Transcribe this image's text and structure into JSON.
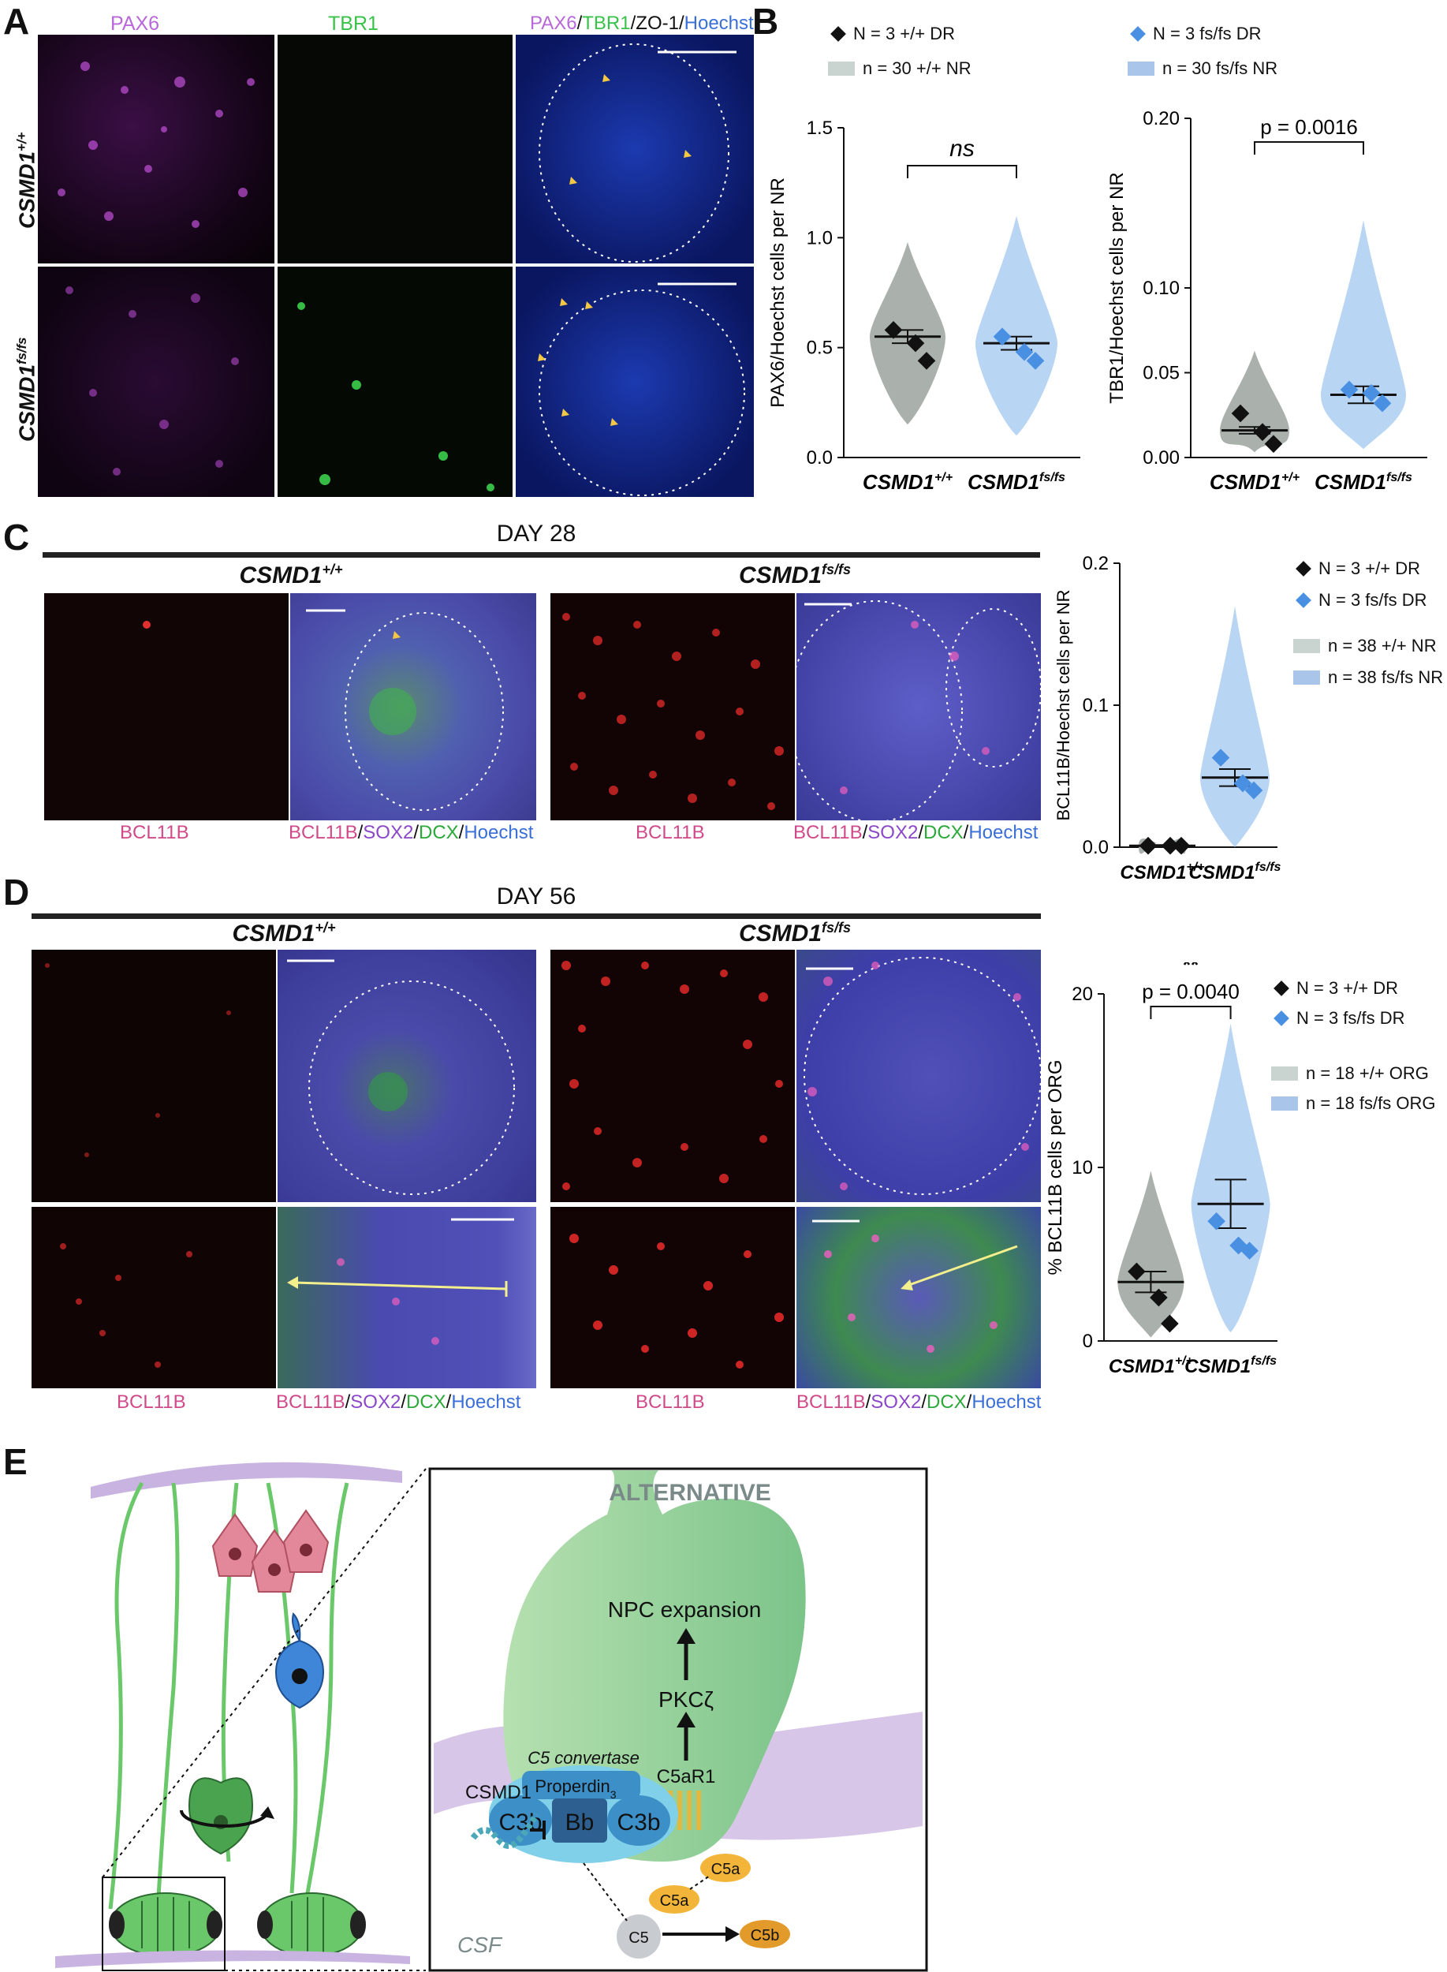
{
  "panels": {
    "A": {
      "letter": "A",
      "channels": {
        "c1": "PAX6",
        "c2": "TBR1",
        "merge_parts": [
          "PAX6",
          "/",
          "TBR1",
          "/ZO-1/",
          "Hoechst"
        ]
      },
      "rows": [
        "CSMD1+/+",
        "CSMD1fs/fs"
      ]
    },
    "B": {
      "letter": "B"
    },
    "C": {
      "letter": "C",
      "day": "DAY 28",
      "genotypes": [
        "CSMD1+/+",
        "CSMD1fs/fs"
      ],
      "channel_single": "BCL11B",
      "merge_parts": [
        "BCL11B",
        "/",
        "SOX2",
        "/",
        "DCX",
        "/",
        "Hoechst"
      ]
    },
    "D": {
      "letter": "D",
      "day": "DAY 56",
      "genotypes": [
        "CSMD1+/+",
        "CSMD1fs/fs"
      ],
      "channel_single": "BCL11B",
      "merge_parts": [
        "BCL11B",
        "/",
        "SOX2",
        "/",
        "DCX",
        "/",
        "Hoechst"
      ]
    },
    "E": {
      "letter": "E"
    }
  },
  "legends": {
    "B": [
      {
        "marker": "diamond",
        "color": "#111111",
        "text": "N = 3 +/+ DR"
      },
      {
        "marker": "diamond",
        "color": "#4a90e2",
        "text": "N = 3 fs/fs DR"
      },
      {
        "marker": "rect",
        "color": "#c9d3cf",
        "text": "n = 30 +/+ NR"
      },
      {
        "marker": "rect",
        "color": "#a9c6ea",
        "text": "n = 30 fs/fs NR"
      }
    ],
    "C": [
      {
        "marker": "diamond",
        "color": "#111111",
        "text": "N = 3 +/+ DR"
      },
      {
        "marker": "diamond",
        "color": "#4a90e2",
        "text": "N = 3 fs/fs DR"
      },
      {
        "marker": "rect",
        "color": "#c9d3cf",
        "text": "n = 38 +/+ NR"
      },
      {
        "marker": "rect",
        "color": "#a9c6ea",
        "text": "n = 38 fs/fs NR"
      }
    ],
    "D": [
      {
        "marker": "diamond",
        "color": "#111111",
        "text": "N = 3 +/+ DR"
      },
      {
        "marker": "diamond",
        "color": "#4a90e2",
        "text": "N = 3 fs/fs DR"
      },
      {
        "marker": "rect",
        "color": "#c9d3cf",
        "text": "n = 18 +/+ ORG"
      },
      {
        "marker": "rect",
        "color": "#a9c6ea",
        "text": "n = 18 fs/fs ORG"
      }
    ]
  },
  "chart_data": [
    {
      "id": "B1",
      "type": "violin",
      "ylabel": "PAX6/Hoechst cells per NR",
      "ylim": [
        0,
        1.5
      ],
      "yticks": [
        "0.0",
        "0.5",
        "1.0",
        "1.5"
      ],
      "categories": [
        "CSMD1+/+",
        "CSMD1fs/fs"
      ],
      "means": [
        0.55,
        0.52
      ],
      "sem": [
        0.03,
        0.03
      ],
      "points": [
        [
          0.58,
          0.52,
          0.44
        ],
        [
          0.55,
          0.48,
          0.44
        ]
      ],
      "significance": "ns"
    },
    {
      "id": "B2",
      "type": "violin",
      "ylabel": "TBR1/Hoechst cells per NR",
      "ylim": [
        0,
        0.2
      ],
      "yticks": [
        "0.00",
        "0.05",
        "0.10",
        "0.20"
      ],
      "categories": [
        "CSMD1+/+",
        "CSMD1fs/fs"
      ],
      "means": [
        0.016,
        0.037
      ],
      "sem": [
        0.002,
        0.005
      ],
      "points": [
        [
          0.026,
          0.015,
          0.008
        ],
        [
          0.04,
          0.038,
          0.032
        ]
      ],
      "significance": "**",
      "pvalue": "p = 0.0016"
    },
    {
      "id": "C",
      "type": "violin",
      "ylabel": "BCL11B/Hoechst cells per NR",
      "ylim": [
        0,
        0.2
      ],
      "yticks": [
        "0.0",
        "0.1",
        "0.2"
      ],
      "categories": [
        "CSMD1+/+",
        "CSMD1fs/fs"
      ],
      "means": [
        0.001,
        0.049
      ],
      "sem": [
        0.0005,
        0.006
      ],
      "points": [
        [
          0.001,
          0.001,
          0.001
        ],
        [
          0.063,
          0.045,
          0.04
        ]
      ]
    },
    {
      "id": "D",
      "type": "violin",
      "ylabel": "% BCL11B cells per ORG",
      "ylim": [
        0,
        20
      ],
      "yticks": [
        "0",
        "10",
        "20"
      ],
      "categories": [
        "CSMD1+/+",
        "CSMD1fs/fs"
      ],
      "means": [
        3.4,
        7.9
      ],
      "sem": [
        0.6,
        1.4
      ],
      "points": [
        [
          4.0,
          2.5,
          1.0
        ],
        [
          6.9,
          5.5,
          5.2
        ]
      ],
      "significance": "**",
      "pvalue": "p = 0.0040"
    }
  ],
  "schematic": {
    "title": "ALTERNATIVE",
    "npc": "NPC expansion",
    "pkc": "PKCζ",
    "c5_convertase": "C5 convertase",
    "properdin": "Properdin",
    "properdin_sub": "3",
    "c3b_left": "C3b",
    "bb": "Bb",
    "c3b_right": "C3b",
    "c5ar1": "C5aR1",
    "csmd1": "CSMD1",
    "c5a_1": "C5a",
    "c5a_2": "C5a",
    "c5": "C5",
    "c5b": "C5b",
    "csf": "CSF"
  }
}
